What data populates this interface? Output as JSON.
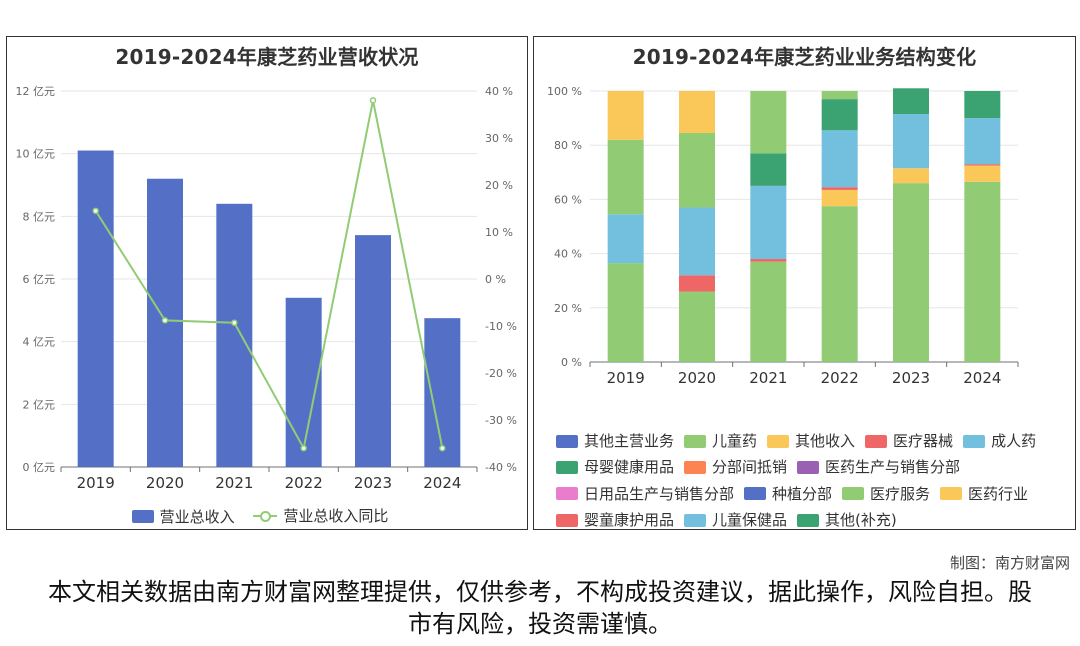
{
  "charts": [
    {
      "title": "2019-2024年康芝药业营收状况",
      "legend": [
        "营业总收入",
        "营业总收入同比"
      ]
    },
    {
      "title": "2019-2024年康芝药业业务结构变化"
    }
  ],
  "chart_data": [
    {
      "type": "bar",
      "title": "2019-2024年康芝药业营收状况",
      "categories": [
        "2019",
        "2020",
        "2021",
        "2022",
        "2023",
        "2024"
      ],
      "y_ticks": [
        "0 亿元",
        "2 亿元",
        "4 亿元",
        "6 亿元",
        "8 亿元",
        "10 亿元",
        "12 亿元"
      ],
      "y2_ticks": [
        "-40 %",
        "-30 %",
        "-20 %",
        "-10 %",
        "0 %",
        "10 %",
        "20 %",
        "30 %",
        "40 %"
      ],
      "ylim": [
        0,
        12
      ],
      "y2lim": [
        -40,
        40
      ],
      "series": [
        {
          "name": "营业总收入",
          "kind": "bar",
          "axis": "left",
          "color": "#5470c6",
          "values": [
            10.1,
            9.2,
            8.4,
            5.4,
            7.4,
            4.75
          ]
        },
        {
          "name": "营业总收入同比",
          "kind": "line",
          "axis": "right",
          "color": "#91cc75",
          "values": [
            14.5,
            -8.8,
            -9.3,
            -36.0,
            38.0,
            -36.0
          ]
        }
      ]
    },
    {
      "type": "bar",
      "stacked": true,
      "title": "2019-2024年康芝药业业务结构变化",
      "categories": [
        "2019",
        "2020",
        "2021",
        "2022",
        "2023",
        "2024"
      ],
      "y_ticks": [
        "0 %",
        "20 %",
        "40 %",
        "60 %",
        "80 %",
        "100 %"
      ],
      "ylim": [
        0,
        100
      ],
      "series": [
        {
          "name": "其他主营业务",
          "color": "#5470c6",
          "values": [
            0,
            0,
            0,
            0,
            0,
            0
          ]
        },
        {
          "name": "儿童药",
          "color": "#91cc75",
          "values": [
            36.5,
            26,
            37,
            57.5,
            66,
            66.5
          ]
        },
        {
          "name": "其他收入",
          "color": "#fac858",
          "values": [
            0,
            0,
            0,
            6,
            5.5,
            6
          ]
        },
        {
          "name": "医疗器械",
          "color": "#ee6666",
          "values": [
            0,
            6,
            1,
            1,
            0,
            0.5
          ]
        },
        {
          "name": "成人药",
          "color": "#73c0de",
          "values": [
            18,
            25,
            27,
            21,
            20,
            17
          ]
        },
        {
          "name": "母婴健康用品",
          "color": "#3ba272",
          "values": [
            0,
            0,
            12,
            11.5,
            9.5,
            10
          ]
        },
        {
          "name": "分部间抵销",
          "color": "#fc8452",
          "values": [
            0,
            0,
            0,
            0,
            0,
            0
          ]
        },
        {
          "name": "医药生产与销售分部",
          "color": "#9a60b4",
          "values": [
            0,
            0,
            0,
            0,
            0,
            0
          ]
        },
        {
          "name": "日用品生产与销售分部",
          "color": "#ea7ccc",
          "values": [
            0,
            0,
            0,
            0,
            0,
            0
          ]
        },
        {
          "name": "种植分部",
          "color": "#5470c6",
          "values": [
            0,
            0,
            0,
            0,
            0,
            0
          ]
        },
        {
          "name": "医疗服务",
          "color": "#91cc75",
          "values": [
            27.5,
            27.5,
            23,
            3,
            0,
            0
          ]
        },
        {
          "name": "医药行业",
          "color": "#fac858",
          "values": [
            18,
            15.5,
            0,
            0,
            0,
            0
          ]
        },
        {
          "name": "婴童康护用品",
          "color": "#ee6666",
          "values": [
            0,
            0,
            0,
            0,
            0,
            0
          ]
        },
        {
          "name": "儿童保健品",
          "color": "#73c0de",
          "values": [
            0,
            0,
            0,
            0,
            0,
            0
          ]
        },
        {
          "name": "其他(补充)",
          "color": "#3ba272",
          "values": [
            0,
            0,
            0,
            0,
            0,
            0
          ]
        }
      ]
    }
  ],
  "footer": {
    "credit": "制图：南方财富网",
    "disclaimer": "本文相关数据由南方财富网整理提供，仅供参考，不构成投资建议，据此操作，风险自担。股市有风险，投资需谨慎。"
  }
}
